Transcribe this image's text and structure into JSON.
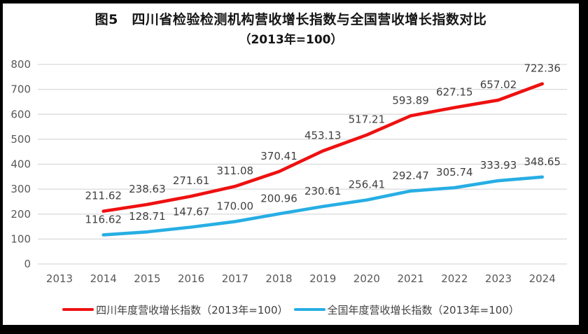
{
  "title": {
    "line1": "图5　四川省检验检测机构营收增长指数与全国营收增长指数对比",
    "line2": "（2013年=100）"
  },
  "chart_data": {
    "type": "line",
    "categories": [
      "2013",
      "2014",
      "2015",
      "2016",
      "2017",
      "2018",
      "2019",
      "2020",
      "2021",
      "2022",
      "2023",
      "2024"
    ],
    "series": [
      {
        "name": "四川年度营收增长指数（2013年=100）",
        "color": "#ee1111",
        "start_index": 1,
        "values": [
          211.62,
          238.63,
          271.61,
          311.08,
          370.41,
          453.13,
          517.21,
          593.89,
          627.15,
          657.02,
          722.36
        ]
      },
      {
        "name": "全国年度营收增长指数（2013年=100）",
        "color": "#27aee4",
        "start_index": 1,
        "values": [
          116.62,
          128.71,
          147.67,
          170.0,
          200.96,
          230.61,
          256.41,
          292.47,
          305.74,
          333.93,
          348.65
        ]
      }
    ],
    "ylim": [
      0,
      800
    ],
    "ytick_step": 100,
    "yticks": [
      "0",
      "100",
      "200",
      "300",
      "400",
      "500",
      "600",
      "700",
      "800"
    ],
    "grid": true,
    "legend_position": "bottom",
    "data_labels": true
  },
  "colors": {
    "gridline": "#d9d9d9",
    "axis_text": "#595959",
    "data_label_text": "#3f3f3f",
    "frame": "#000000"
  }
}
